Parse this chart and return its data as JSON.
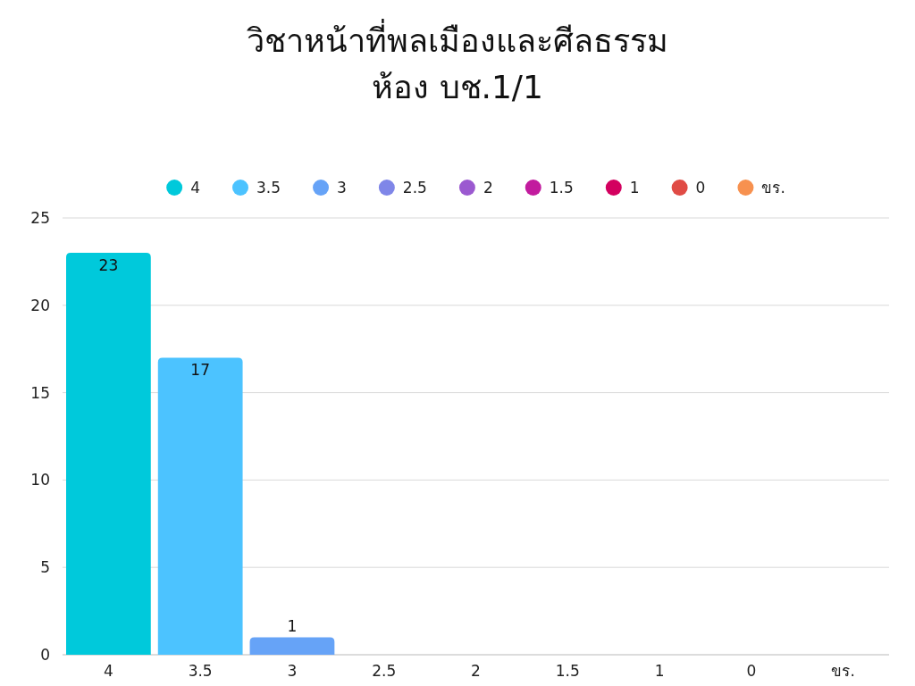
{
  "chart_data": {
    "type": "bar",
    "title": "วิชาหน้าที่พลเมืองและศีลธรรม\nห้อง บช.1/1",
    "categories": [
      "4",
      "3.5",
      "3",
      "2.5",
      "2",
      "1.5",
      "1",
      "0",
      "ขร."
    ],
    "stacked": true,
    "series": [
      {
        "name": "4",
        "color": "#00c9db",
        "values": [
          23,
          null,
          null,
          null,
          null,
          null,
          null,
          null,
          null
        ],
        "value_labels": [
          "23",
          null,
          null,
          null,
          null,
          null,
          null,
          null,
          null
        ]
      },
      {
        "name": "3.5",
        "color": "#4cc3ff",
        "values": [
          null,
          17,
          null,
          null,
          null,
          null,
          null,
          null,
          null
        ],
        "value_labels": [
          null,
          "17",
          null,
          null,
          null,
          null,
          null,
          null,
          null
        ]
      },
      {
        "name": "3",
        "color": "#66a3f7",
        "values": [
          null,
          null,
          1,
          null,
          null,
          null,
          null,
          null,
          null
        ],
        "value_labels": [
          null,
          null,
          "1",
          null,
          null,
          null,
          null,
          null,
          null
        ]
      },
      {
        "name": "2.5",
        "color": "#7f86e8",
        "values": [
          null,
          null,
          null,
          0,
          null,
          null,
          null,
          null,
          null
        ]
      },
      {
        "name": "2",
        "color": "#9b59d0",
        "values": [
          null,
          null,
          null,
          null,
          0,
          null,
          null,
          null,
          null
        ]
      },
      {
        "name": "1.5",
        "color": "#c21b9e",
        "values": [
          null,
          null,
          null,
          null,
          null,
          0,
          null,
          null,
          null
        ]
      },
      {
        "name": "1",
        "color": "#d3005f",
        "values": [
          null,
          null,
          null,
          null,
          null,
          null,
          0,
          null,
          null
        ]
      },
      {
        "name": "0",
        "color": "#e04b45",
        "values": [
          null,
          null,
          null,
          null,
          null,
          null,
          null,
          0,
          null
        ]
      },
      {
        "name": "ขร.",
        "color": "#f7914f",
        "values": [
          null,
          null,
          null,
          null,
          null,
          null,
          null,
          null,
          0
        ]
      }
    ],
    "ylim": [
      0,
      25
    ],
    "yticks": [
      0,
      5,
      10,
      15,
      20,
      25
    ],
    "grid": "y",
    "legend": "top"
  }
}
